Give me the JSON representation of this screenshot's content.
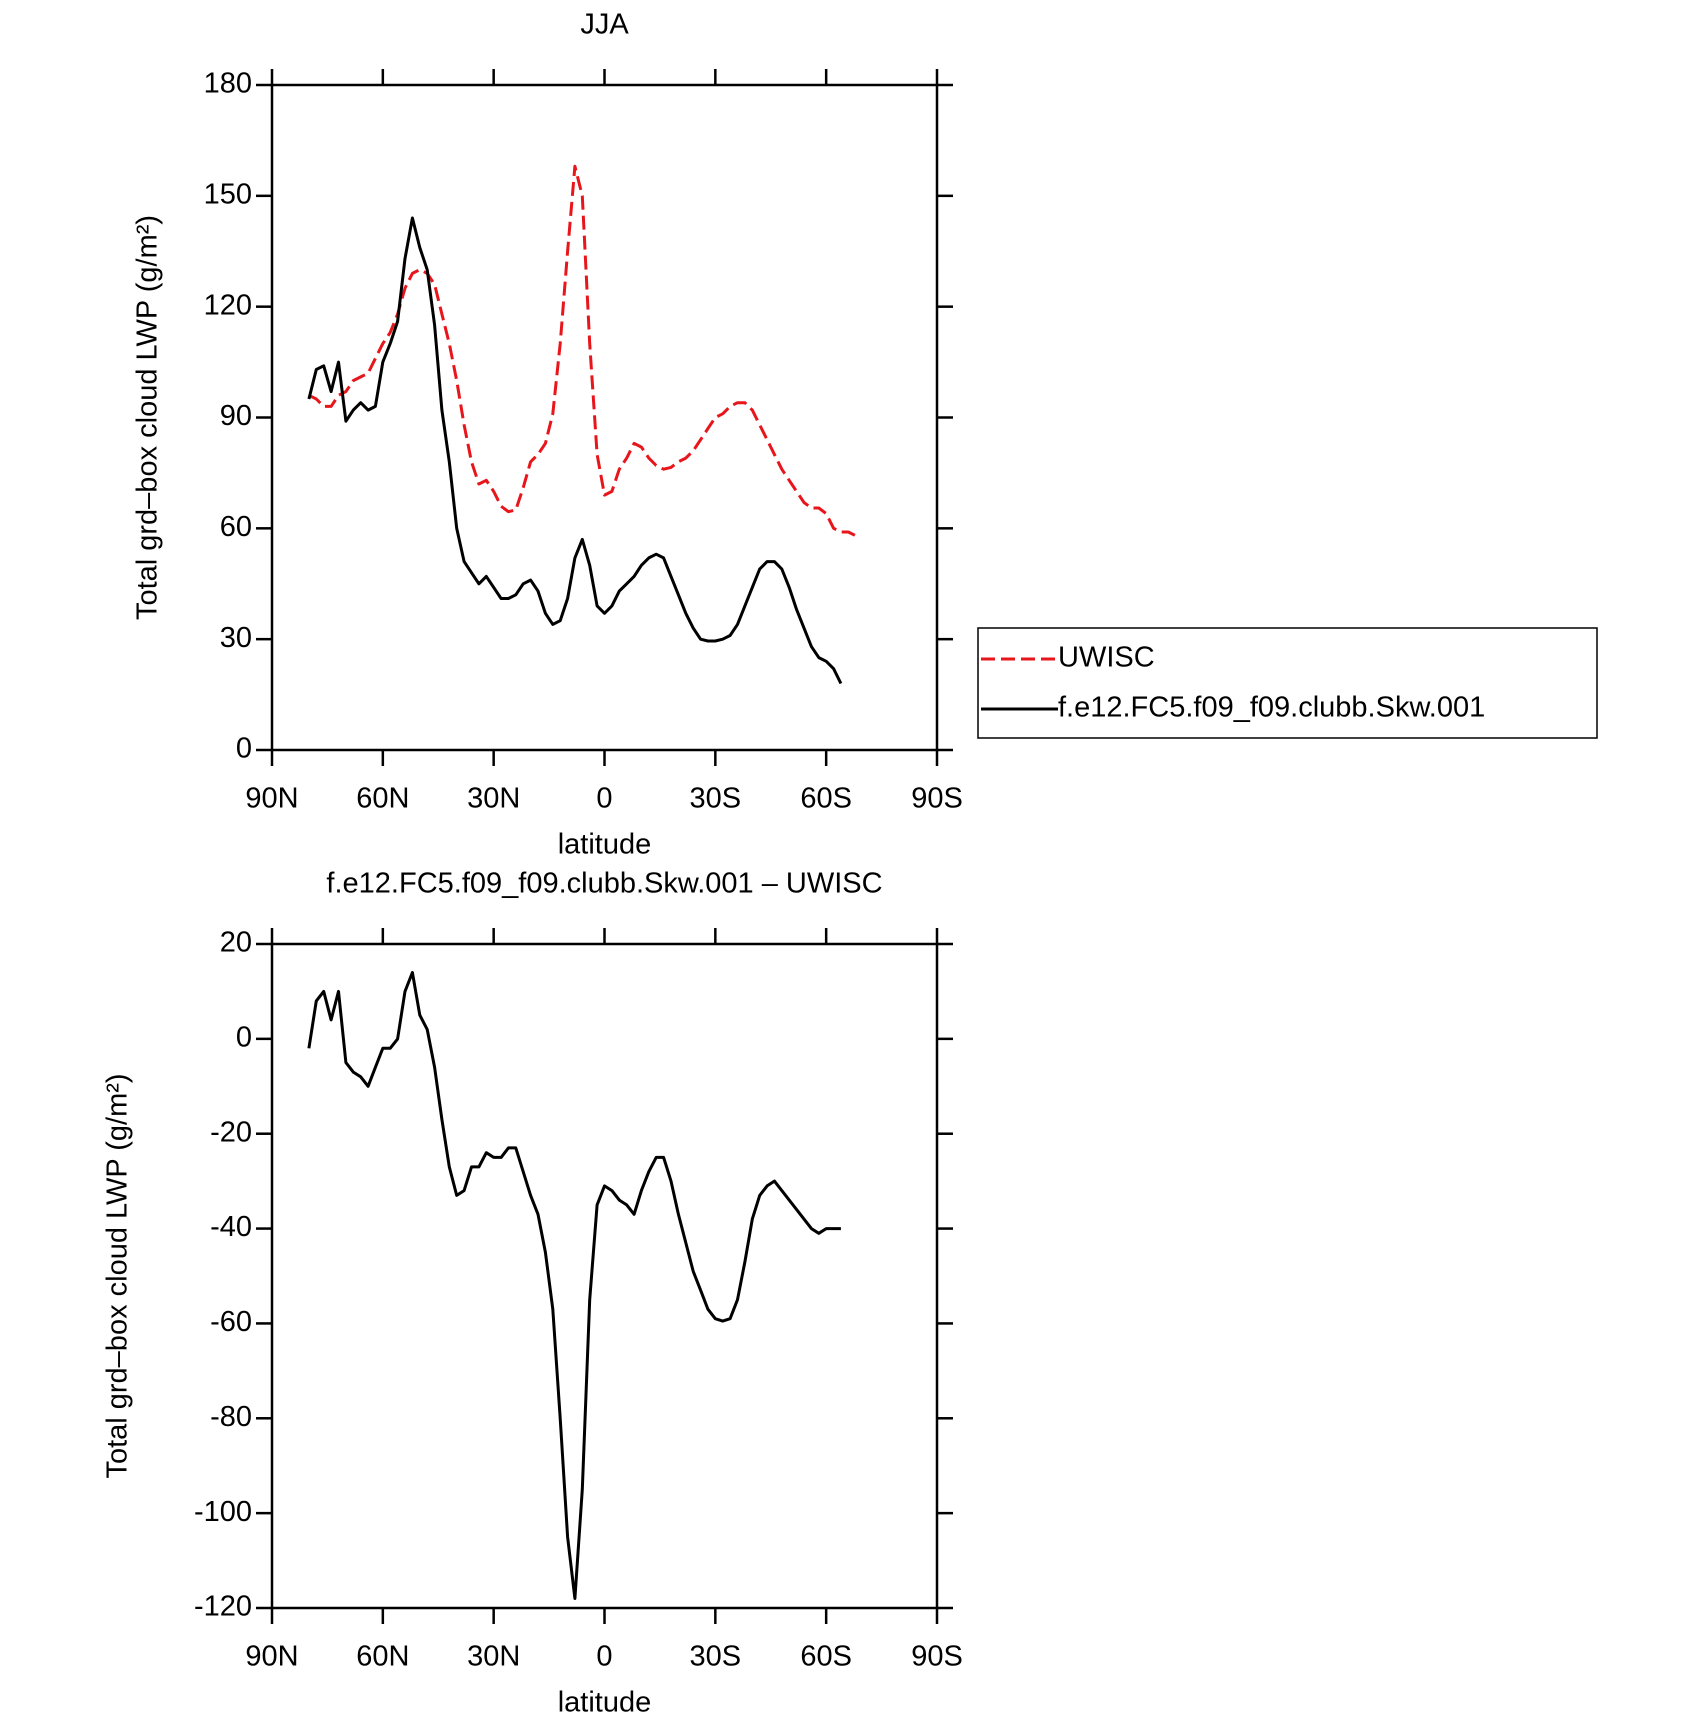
{
  "chart_data": [
    {
      "type": "line",
      "title": "JJA",
      "xlabel": "latitude",
      "ylabel": "Total grd–box cloud LWP (g/m²)",
      "x": [
        80,
        78,
        76,
        74,
        72,
        70,
        68,
        66,
        64,
        62,
        60,
        58,
        56,
        54,
        52,
        50,
        48,
        46,
        44,
        42,
        40,
        38,
        36,
        34,
        32,
        30,
        28,
        26,
        24,
        22,
        20,
        18,
        16,
        14,
        12,
        10,
        8,
        6,
        4,
        2,
        0,
        -2,
        -4,
        -6,
        -8,
        -10,
        -12,
        -14,
        -16,
        -18,
        -20,
        -22,
        -24,
        -26,
        -28,
        -30,
        -32,
        -34,
        -36,
        -38,
        -40,
        -42,
        -44,
        -46,
        -48,
        -50,
        -52,
        -54,
        -56,
        -58,
        -60,
        -62,
        -64,
        -66,
        -68
      ],
      "series": [
        {
          "name": "UWISC",
          "color": "#e8161b",
          "line_style": "dashed",
          "values": [
            96,
            95,
            93,
            93,
            96,
            97,
            100,
            101,
            102,
            106,
            110,
            113,
            118,
            125,
            129,
            130,
            129,
            126,
            118,
            110,
            100,
            88,
            78,
            72,
            73,
            70,
            66,
            64.5,
            65,
            71,
            78,
            80,
            83,
            91,
            110,
            135,
            158,
            150,
            110,
            80,
            69,
            70,
            76,
            79,
            83,
            82,
            79,
            77,
            76,
            76.5,
            78,
            79,
            81,
            84,
            87,
            90,
            91,
            93,
            94,
            94,
            92,
            88,
            84,
            80,
            76,
            73,
            70,
            67,
            65.5,
            65.5,
            64,
            60,
            59,
            59,
            58
          ]
        },
        {
          "name": "f.e12.FC5.f09_f09.clubb.Skw.001",
          "color": "#000000",
          "line_style": "solid",
          "values": [
            95,
            103,
            104,
            97,
            105,
            89,
            92,
            94,
            92,
            93,
            105,
            110,
            116,
            133,
            144,
            136,
            130,
            115,
            92,
            78,
            60,
            51,
            48,
            45,
            47,
            44,
            41,
            41,
            42,
            45,
            46,
            43,
            37,
            34,
            35,
            41,
            52,
            57,
            50,
            39,
            37,
            39,
            43,
            45,
            47,
            50,
            52,
            53,
            52,
            47,
            42,
            37,
            33,
            30,
            29.5,
            29.5,
            30,
            31,
            34,
            39,
            44,
            49,
            51,
            51,
            49,
            44,
            38,
            33,
            28,
            25,
            24,
            22,
            18,
            null,
            null
          ]
        }
      ],
      "xlim": [
        90,
        -90
      ],
      "xticks": [
        {
          "value": 90,
          "label": "90N"
        },
        {
          "value": 60,
          "label": "60N"
        },
        {
          "value": 30,
          "label": "30N"
        },
        0,
        {
          "value": -30,
          "label": "30S"
        },
        {
          "value": -60,
          "label": "60S"
        },
        {
          "value": -90,
          "label": "90S"
        }
      ],
      "ylim": [
        0,
        180
      ],
      "yticks": [
        0,
        30,
        60,
        90,
        120,
        150,
        180
      ],
      "grid": false,
      "legend": "right"
    },
    {
      "type": "line",
      "title": "f.e12.FC5.f09_f09.clubb.Skw.001 – UWISC",
      "xlabel": "latitude",
      "ylabel": "Total grd–box cloud LWP (g/m²)",
      "x": [
        80,
        78,
        76,
        74,
        72,
        70,
        68,
        66,
        64,
        62,
        60,
        58,
        56,
        54,
        52,
        50,
        48,
        46,
        44,
        42,
        40,
        38,
        36,
        34,
        32,
        30,
        28,
        26,
        24,
        22,
        20,
        18,
        16,
        14,
        12,
        10,
        8,
        6,
        4,
        2,
        0,
        -2,
        -4,
        -6,
        -8,
        -10,
        -12,
        -14,
        -16,
        -18,
        -20,
        -22,
        -24,
        -26,
        -28,
        -30,
        -32,
        -34,
        -36,
        -38,
        -40,
        -42,
        -44,
        -46,
        -48,
        -50,
        -52,
        -54,
        -56,
        -58,
        -60,
        -62,
        -64
      ],
      "series": [
        {
          "color": "#000000",
          "line_style": "solid",
          "values": [
            -2,
            8,
            10,
            4,
            10,
            -5,
            -7,
            -8,
            -10,
            -6,
            -2,
            -2,
            0,
            10,
            14,
            5,
            2,
            -6,
            -17,
            -27,
            -33,
            -32,
            -27,
            -27,
            -24,
            -25,
            -25,
            -23,
            -23,
            -28,
            -33,
            -37,
            -45,
            -57,
            -80,
            -105,
            -118,
            -95,
            -55,
            -35,
            -31,
            -32,
            -34,
            -35,
            -37,
            -32,
            -28,
            -25,
            -25,
            -30,
            -37,
            -43,
            -49,
            -53,
            -57,
            -59,
            -59.5,
            -59,
            -55,
            -47,
            -38,
            -33,
            -31,
            -30,
            -32,
            -34,
            -36,
            -38,
            -40,
            -41,
            -40,
            -40,
            -40
          ]
        }
      ],
      "xlim": [
        90,
        -90
      ],
      "xticks": [
        {
          "value": 90,
          "label": "90N"
        },
        {
          "value": 60,
          "label": "60N"
        },
        {
          "value": 30,
          "label": "30N"
        },
        0,
        {
          "value": -30,
          "label": "30S"
        },
        {
          "value": -60,
          "label": "60S"
        },
        {
          "value": -90,
          "label": "90S"
        }
      ],
      "ylim": [
        -120,
        20
      ],
      "yticks": [
        -120,
        -100,
        -80,
        -60,
        -40,
        -20,
        0,
        20
      ],
      "grid": false
    }
  ]
}
